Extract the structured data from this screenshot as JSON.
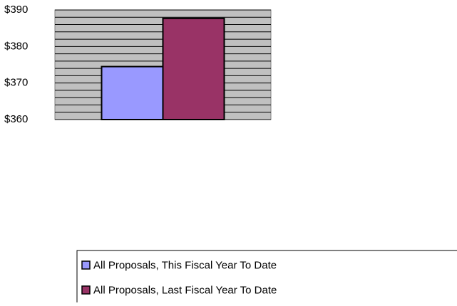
{
  "chart_data": {
    "type": "bar",
    "categories": [
      null
    ],
    "series": [
      {
        "name": "All Proposals, This Fiscal Year To Date",
        "color": "#9999ff",
        "values": [
          374.5
        ]
      },
      {
        "name": "All Proposals, Last Fiscal Year To Date",
        "color": "#993366",
        "values": [
          387.7
        ]
      }
    ],
    "ylim": [
      360,
      390
    ],
    "yticks": [
      {
        "value": 360,
        "label": "$360"
      },
      {
        "value": 370,
        "label": "$370"
      },
      {
        "value": 380,
        "label": "$380"
      },
      {
        "value": 390,
        "label": "$390"
      }
    ],
    "minor_yticks": [
      362,
      364,
      366,
      368,
      372,
      374,
      376,
      378,
      382,
      384,
      386,
      388
    ],
    "grid": true,
    "plot_background": "#c0c0c0",
    "legend": "bottom"
  }
}
